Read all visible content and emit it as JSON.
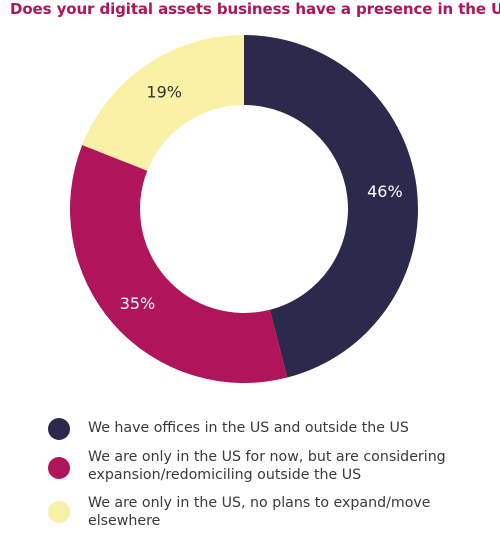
{
  "chart_data": {
    "type": "pie",
    "title": "Does your digital assets business have a presence in the US?",
    "donut": true,
    "series": [
      {
        "name": "We have offices in the US and outside the US",
        "value": 46,
        "label": "46%",
        "color": "#2b2a4c"
      },
      {
        "name": "We are only in the US for now, but are considering expansion/redomiciling outside the US",
        "value": 35,
        "label": "35%",
        "color": "#b0145a"
      },
      {
        "name": "We are only in the US, no plans to expand/move elsewhere",
        "value": 19,
        "label": "19%",
        "color": "#f8f1a6"
      }
    ],
    "legend_position": "bottom"
  }
}
